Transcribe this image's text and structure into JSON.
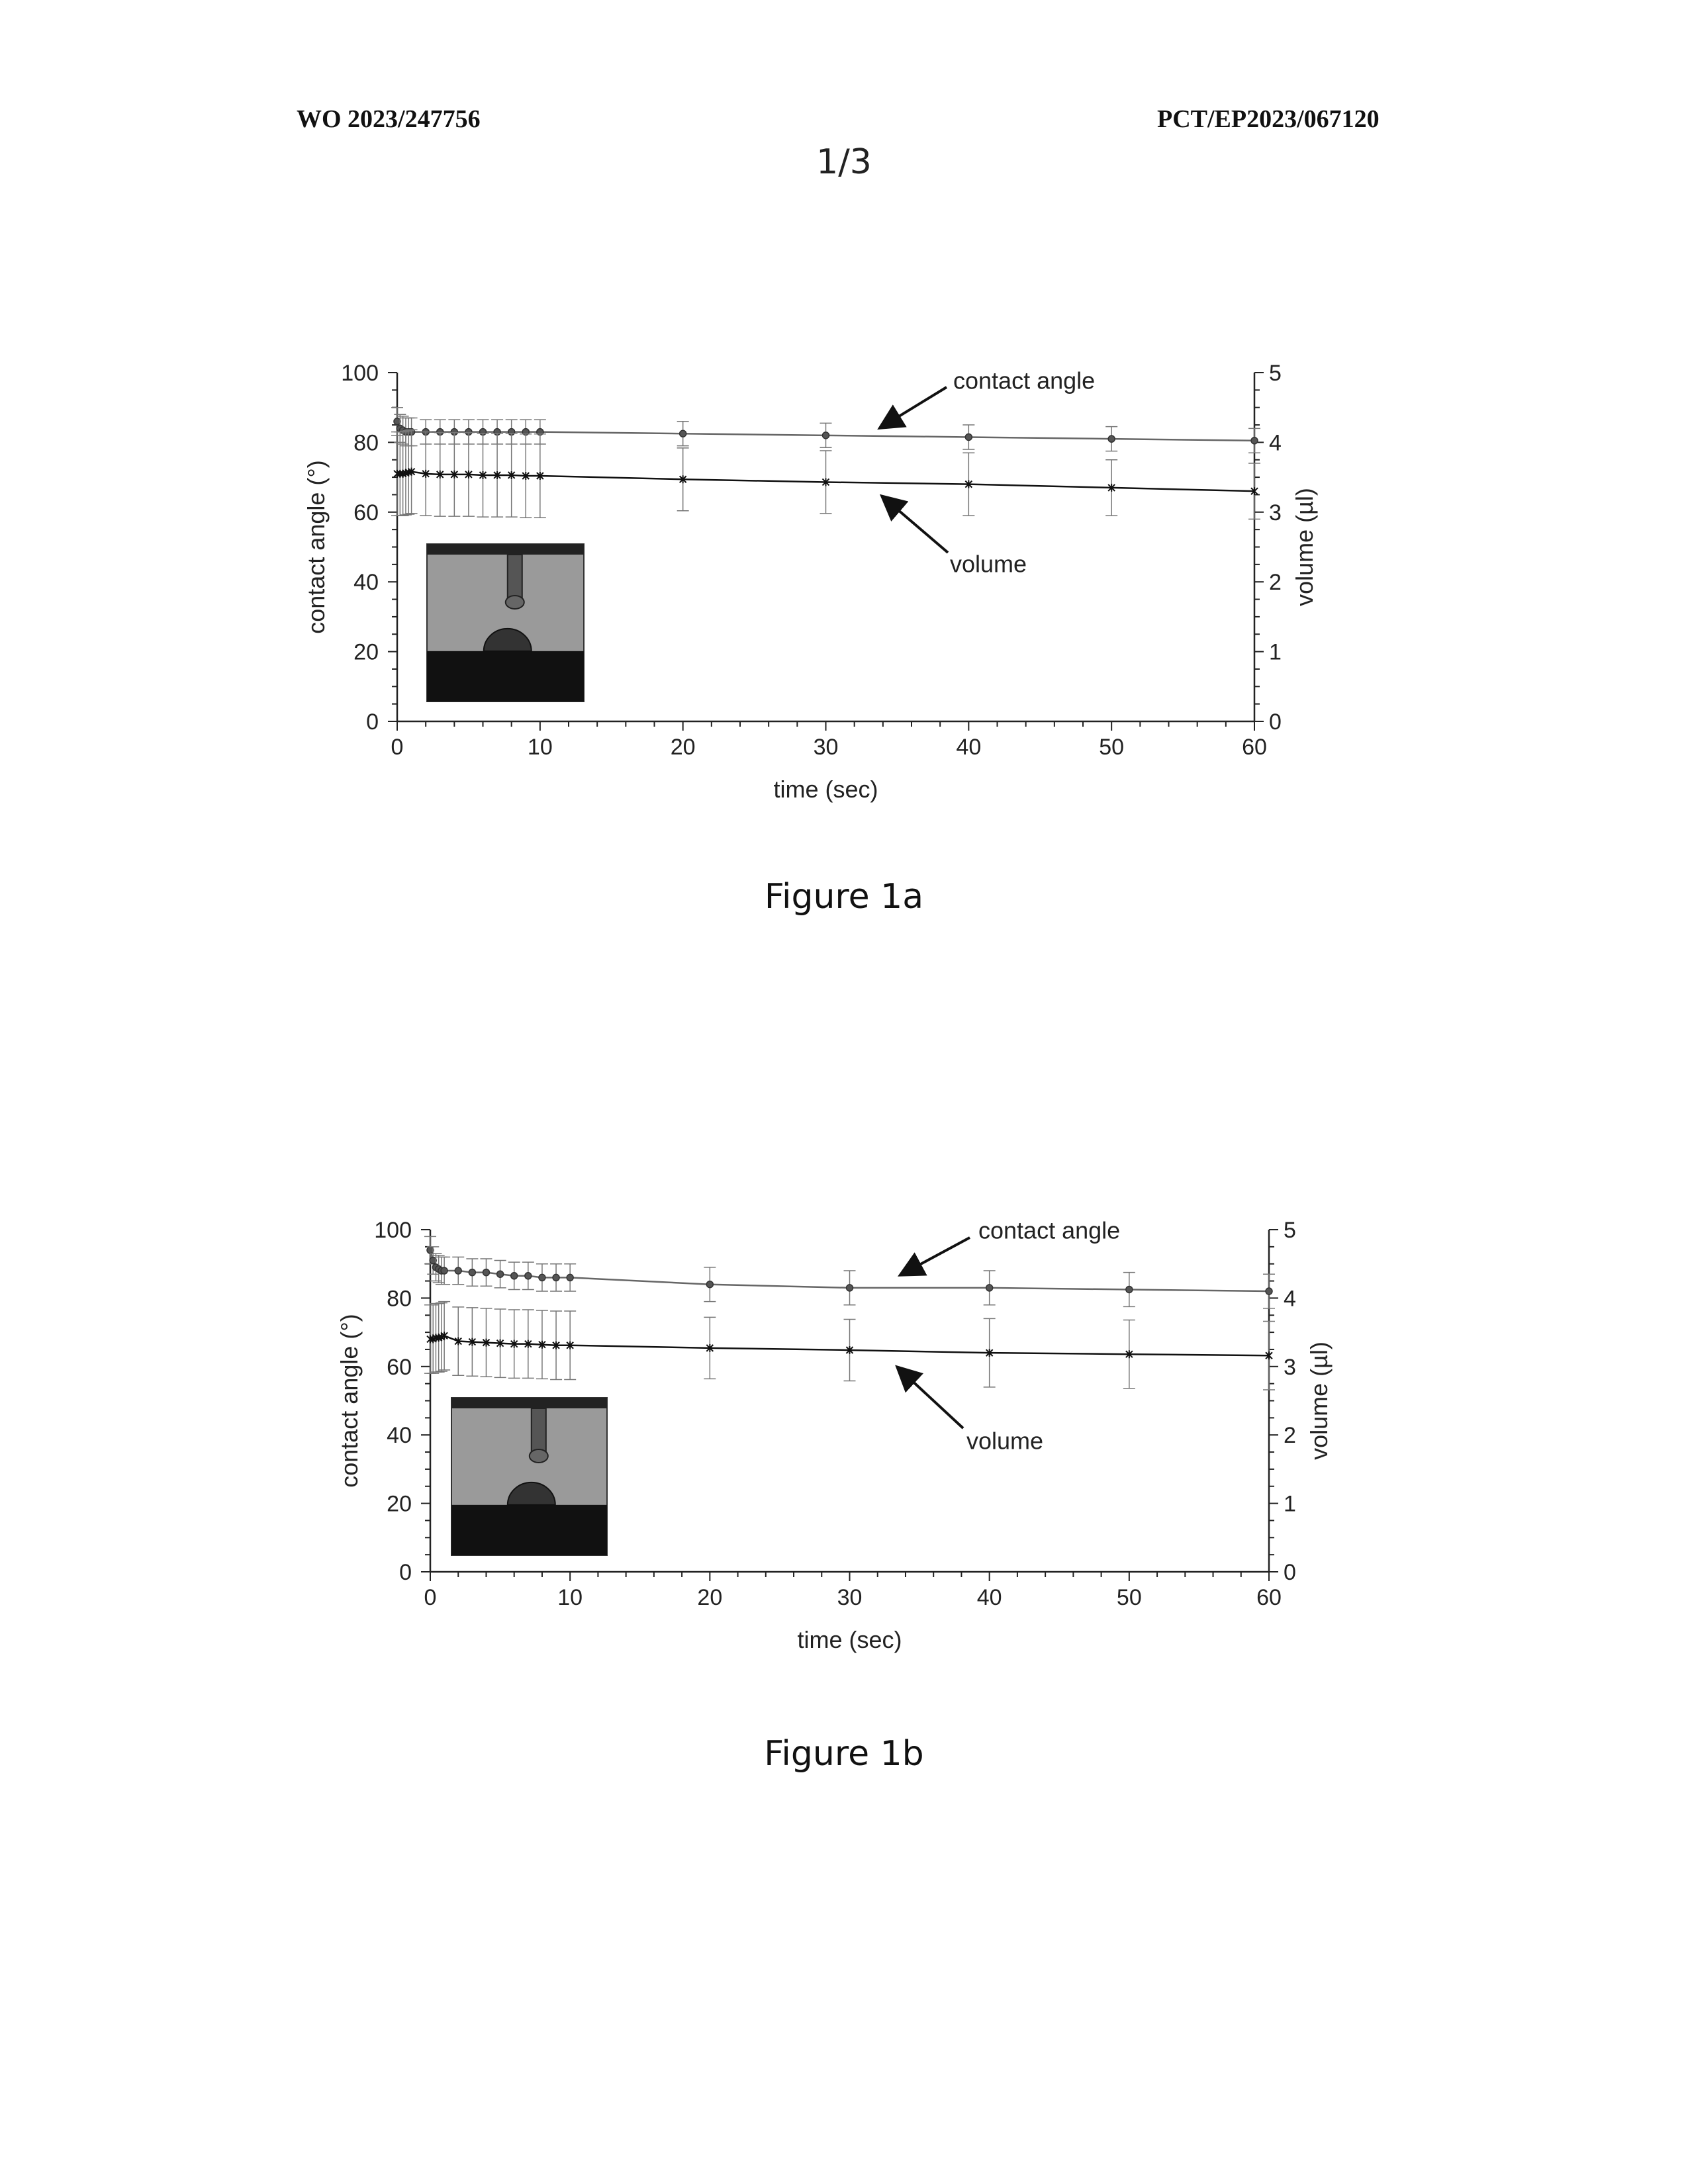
{
  "header": {
    "left": "WO 2023/247756",
    "right": "PCT/EP2023/067120",
    "page": "1/3"
  },
  "figures": [
    {
      "caption": "Figure 1a"
    },
    {
      "caption": "Figure 1b"
    }
  ],
  "chart_data": [
    {
      "type": "line",
      "xlabel": "time (sec)",
      "ylabel": "contact angle (°)",
      "y2label": "volume (µl)",
      "xlim": [
        0,
        60
      ],
      "ylim": [
        0,
        100
      ],
      "y2lim": [
        0,
        5
      ],
      "xticks": [
        0,
        10,
        20,
        30,
        40,
        50,
        60
      ],
      "yticks": [
        0,
        20,
        40,
        60,
        80,
        100
      ],
      "y2ticks": [
        0,
        1,
        2,
        3,
        4,
        5
      ],
      "grid": false,
      "colors": {
        "contact_angle": "#666666",
        "volume": "#111111"
      },
      "annotations": [
        "contact angle",
        "volume"
      ],
      "series": [
        {
          "axis": "left",
          "marker": "circle",
          "x": [
            0,
            0.2,
            0.4,
            0.6,
            0.8,
            1,
            2,
            3,
            4,
            5,
            6,
            7,
            8,
            9,
            10,
            20,
            30,
            40,
            50,
            60
          ],
          "y": [
            86,
            84,
            83.5,
            83,
            83,
            83,
            83,
            83,
            83,
            83,
            83,
            83,
            83,
            83,
            83,
            82.5,
            82,
            81.5,
            81,
            80.5
          ],
          "err": [
            4,
            4,
            4,
            4,
            4,
            4,
            3.5,
            3.5,
            3.5,
            3.5,
            3.5,
            3.5,
            3.5,
            3.5,
            3.5,
            3.5,
            3.5,
            3.5,
            3.5,
            3.5
          ]
        },
        {
          "axis": "right",
          "marker": "star",
          "x": [
            0,
            0.2,
            0.4,
            0.6,
            0.8,
            1,
            2,
            3,
            4,
            5,
            6,
            7,
            8,
            9,
            10,
            20,
            30,
            40,
            50,
            60
          ],
          "y": [
            3.55,
            3.55,
            3.55,
            3.56,
            3.57,
            3.58,
            3.55,
            3.54,
            3.54,
            3.54,
            3.53,
            3.53,
            3.53,
            3.52,
            3.52,
            3.47,
            3.43,
            3.4,
            3.35,
            3.3
          ],
          "err": [
            0.6,
            0.6,
            0.6,
            0.6,
            0.6,
            0.6,
            0.6,
            0.6,
            0.6,
            0.6,
            0.6,
            0.6,
            0.6,
            0.6,
            0.6,
            0.45,
            0.45,
            0.45,
            0.4,
            0.4
          ]
        }
      ]
    },
    {
      "type": "line",
      "xlabel": "time (sec)",
      "ylabel": "contact angle (°)",
      "y2label": "volume (µl)",
      "xlim": [
        0,
        60
      ],
      "ylim": [
        0,
        100
      ],
      "y2lim": [
        0,
        5
      ],
      "xticks": [
        0,
        10,
        20,
        30,
        40,
        50,
        60
      ],
      "yticks": [
        0,
        20,
        40,
        60,
        80,
        100
      ],
      "y2ticks": [
        0,
        1,
        2,
        3,
        4,
        5
      ],
      "grid": false,
      "colors": {
        "contact_angle": "#666666",
        "volume": "#111111"
      },
      "annotations": [
        "contact angle",
        "volume"
      ],
      "series": [
        {
          "axis": "left",
          "marker": "circle",
          "x": [
            0,
            0.2,
            0.4,
            0.6,
            0.8,
            1,
            2,
            3,
            4,
            5,
            6,
            7,
            8,
            9,
            10,
            20,
            30,
            40,
            50,
            60
          ],
          "y": [
            94,
            91,
            89,
            88.5,
            88,
            88,
            88,
            87.5,
            87.5,
            87,
            86.5,
            86.5,
            86,
            86,
            86,
            84,
            83,
            83,
            82.5,
            82
          ],
          "err": [
            4,
            4,
            4,
            4,
            4,
            4,
            4,
            4,
            4,
            4,
            4,
            4,
            4,
            4,
            4,
            5,
            5,
            5,
            5,
            5
          ]
        },
        {
          "axis": "right",
          "marker": "star",
          "x": [
            0,
            0.2,
            0.4,
            0.6,
            0.8,
            1,
            2,
            3,
            4,
            5,
            6,
            7,
            8,
            9,
            10,
            20,
            30,
            40,
            50,
            60
          ],
          "y": [
            3.4,
            3.4,
            3.42,
            3.42,
            3.43,
            3.45,
            3.37,
            3.36,
            3.35,
            3.34,
            3.33,
            3.33,
            3.32,
            3.31,
            3.31,
            3.27,
            3.24,
            3.2,
            3.18,
            3.16
          ],
          "err": [
            0.5,
            0.5,
            0.5,
            0.5,
            0.5,
            0.5,
            0.5,
            0.5,
            0.5,
            0.5,
            0.5,
            0.5,
            0.5,
            0.5,
            0.5,
            0.45,
            0.45,
            0.5,
            0.5,
            0.5
          ]
        }
      ]
    }
  ]
}
